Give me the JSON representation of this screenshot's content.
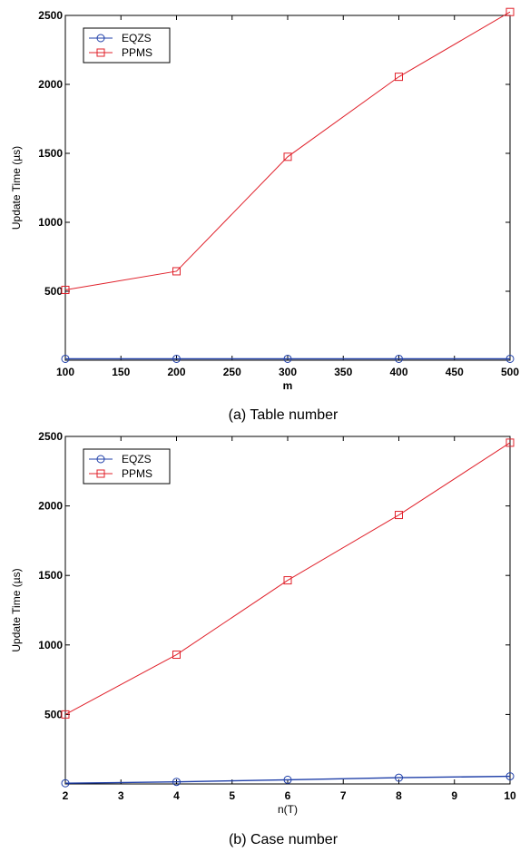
{
  "chart_data": [
    {
      "type": "line",
      "caption": "(a) Table number",
      "xlabel": "m",
      "ylabel": "Update Time (µs)",
      "xlim": [
        100,
        500
      ],
      "ylim": [
        0,
        2500
      ],
      "xticks": [
        100,
        150,
        200,
        250,
        300,
        350,
        400,
        450,
        500
      ],
      "yticks": [
        500,
        1000,
        1500,
        2000,
        2500
      ],
      "grid": false,
      "legend_position": "top-left",
      "x": [
        100,
        200,
        300,
        400,
        500
      ],
      "series": [
        {
          "name": "EQZS",
          "color": "#1f3fa8",
          "marker": "circle",
          "values": [
            10,
            10,
            10,
            10,
            10
          ]
        },
        {
          "name": "PPMS",
          "color": "#e0202a",
          "marker": "square",
          "values": [
            510,
            645,
            1475,
            2055,
            2525
          ]
        }
      ]
    },
    {
      "type": "line",
      "caption": "(b) Case number",
      "xlabel": "n(T)",
      "ylabel": "Update Time (µs)",
      "xlim": [
        2,
        10
      ],
      "ylim": [
        0,
        2500
      ],
      "xticks": [
        2,
        3,
        4,
        5,
        6,
        7,
        8,
        9,
        10
      ],
      "yticks": [
        500,
        1000,
        1500,
        2000,
        2500
      ],
      "grid": false,
      "legend_position": "top-left",
      "x": [
        2,
        4,
        6,
        8,
        10
      ],
      "series": [
        {
          "name": "EQZS",
          "color": "#1f3fa8",
          "marker": "circle",
          "values": [
            5,
            15,
            30,
            45,
            55
          ]
        },
        {
          "name": "PPMS",
          "color": "#e0202a",
          "marker": "square",
          "values": [
            500,
            930,
            1465,
            1935,
            2455
          ]
        }
      ]
    }
  ]
}
